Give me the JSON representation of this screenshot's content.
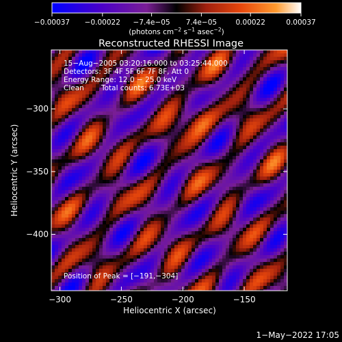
{
  "chart_data": {
    "type": "heatmap",
    "title": "Reconstructed RHESSI Image",
    "xlabel": "Heliocentric X (arcsec)",
    "ylabel": "Heliocentric Y (arcsec)",
    "xlim": [
      -307,
      -115
    ],
    "ylim": [
      -445,
      -253
    ],
    "xticks": [
      -300,
      -250,
      -200,
      -150
    ],
    "yticks": [
      -300,
      -350,
      -400
    ],
    "xtick_labels": [
      "−300",
      "−250",
      "−200",
      "−150"
    ],
    "ytick_labels": [
      "−300",
      "−350",
      "−400"
    ],
    "colorbar": {
      "range": [
        -0.00037,
        0.00037
      ],
      "ticks": [
        -0.00037,
        -0.00022,
        -7.4e-05,
        7.4e-05,
        0.00022,
        0.00037
      ],
      "tick_labels": [
        "−0.00037",
        "−0.00022",
        "−7.4e−05",
        "7.4e−05",
        "0.00022",
        "0.00037"
      ],
      "unit_main": "(photons cm",
      "unit_exp1": "−2",
      "unit_mid": " s",
      "unit_exp2": "−1",
      "unit_mid2": " asec",
      "unit_exp3": "−2",
      "unit_end": ")",
      "colors": [
        "#0000ff",
        "#4b00c8",
        "#7a1e96",
        "#000000",
        "#a0200e",
        "#e8470c",
        "#ff9a2e",
        "#ffffff"
      ]
    },
    "annotations": {
      "time_range": "15−Aug−2005 03:20:16.000 to 03:25:44.000",
      "detectors": "Detectors: 3F 4F 5F 6F 7F 8F, Att 0",
      "energy_range": "Energy Range: 12.0 − 25.0 keV",
      "clean_method": "Clean",
      "total_counts": "Total counts: 6.73E+03",
      "peak_position": "Position of Peak = [−191,−304]"
    },
    "peak": {
      "x": -191,
      "y": -304
    }
  },
  "footer": {
    "date": "1−May−2022 17:05"
  }
}
